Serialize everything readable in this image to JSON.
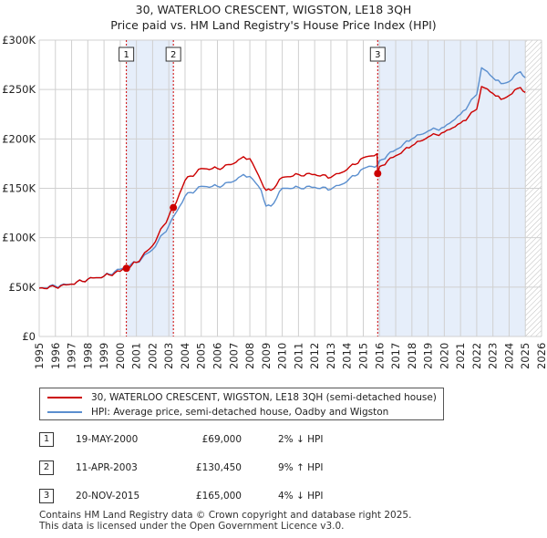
{
  "title": {
    "line1": "30, WATERLOO CRESCENT, WIGSTON, LE18 3QH",
    "line2": "Price paid vs. HM Land Registry's House Price Index (HPI)"
  },
  "colors": {
    "red": "#cc0000",
    "blue": "#5b8fcf",
    "shade": "#e6eefa",
    "grid": "#d0d0d0"
  },
  "legend": {
    "property": "30, WATERLOO CRESCENT, WIGSTON, LE18 3QH (semi-detached house)",
    "hpi": "HPI: Average price, semi-detached house, Oadby and Wigston"
  },
  "sales": [
    {
      "num": "1",
      "date": "19-MAY-2000",
      "price": "£69,000",
      "hpi": "2% ↓ HPI"
    },
    {
      "num": "2",
      "date": "11-APR-2003",
      "price": "£130,450",
      "hpi": "9% ↑ HPI"
    },
    {
      "num": "3",
      "date": "20-NOV-2015",
      "price": "£165,000",
      "hpi": "4% ↓ HPI"
    }
  ],
  "footer": {
    "line1": "Contains HM Land Registry data © Crown copyright and database right 2025.",
    "line2": "This data is licensed under the Open Government Licence v3.0."
  },
  "chart_data": {
    "type": "line",
    "title": "Price paid vs. HM Land Registry's House Price Index (HPI)",
    "x_range": [
      1995,
      2026
    ],
    "y_range": [
      0,
      300000
    ],
    "y_ticks": [
      0,
      50000,
      100000,
      150000,
      200000,
      250000,
      300000
    ],
    "y_tick_labels": [
      "£0",
      "£50K",
      "£100K",
      "£150K",
      "£200K",
      "£250K",
      "£300K"
    ],
    "x_ticks": [
      1995,
      1996,
      1997,
      1998,
      1999,
      2000,
      2001,
      2002,
      2003,
      2004,
      2005,
      2006,
      2007,
      2008,
      2009,
      2010,
      2011,
      2012,
      2013,
      2014,
      2015,
      2016,
      2017,
      2018,
      2019,
      2020,
      2021,
      2022,
      2023,
      2024,
      2025,
      2026
    ],
    "grid": true,
    "shaded_periods": [
      [
        2000.38,
        2003.28
      ],
      [
        2015.89,
        2025.0
      ]
    ],
    "hatched_from": 2025.0,
    "sale_points": [
      {
        "label": "1",
        "x": 2000.38,
        "y": 69000
      },
      {
        "label": "2",
        "x": 2003.28,
        "y": 130450
      },
      {
        "label": "3",
        "x": 2015.89,
        "y": 165000
      }
    ],
    "series": [
      {
        "name": "30, WATERLOO CRESCENT, WIGSTON, LE18 3QH (semi-detached house)",
        "color": "#cc0000",
        "x": [
          1995,
          1996,
          1997,
          1998,
          1999,
          2000,
          2000.38,
          2001,
          2002,
          2003,
          2003.28,
          2004,
          2005,
          2006,
          2007,
          2007.6,
          2008,
          2008.7,
          2009,
          2009.3,
          2010,
          2011,
          2012,
          2013,
          2014,
          2015,
          2015.85,
          2015.89,
          2016,
          2017,
          2018,
          2019,
          2020,
          2021,
          2022,
          2022.3,
          2023,
          2023.5,
          2024,
          2024.7,
          2025
        ],
        "y": [
          49000,
          50000,
          53000,
          58000,
          61000,
          66000,
          69000,
          75000,
          92000,
          122000,
          130450,
          158000,
          170000,
          170000,
          175000,
          182000,
          180000,
          157000,
          148000,
          148000,
          161000,
          164000,
          164000,
          161000,
          169000,
          181000,
          185000,
          165000,
          172000,
          183000,
          193000,
          202000,
          207000,
          216000,
          230000,
          253000,
          246000,
          240000,
          244000,
          252000,
          247000
        ]
      },
      {
        "name": "HPI: Average price, semi-detached house, Oadby and Wigston",
        "color": "#5b8fcf",
        "x": [
          1995,
          1996,
          1997,
          1998,
          1999,
          2000,
          2001,
          2002,
          2003,
          2004,
          2005,
          2006,
          2007,
          2007.6,
          2008,
          2008.7,
          2009,
          2009.3,
          2010,
          2011,
          2012,
          2013,
          2014,
          2015,
          2015.9,
          2016,
          2017,
          2018,
          2019,
          2020,
          2021,
          2022,
          2022.3,
          2023,
          2023.5,
          2024,
          2024.7,
          2025
        ],
        "y": [
          49000,
          51000,
          53000,
          58000,
          61000,
          68000,
          75000,
          88000,
          112000,
          142000,
          152000,
          152000,
          157000,
          164000,
          162000,
          148000,
          132000,
          132000,
          150000,
          151000,
          151000,
          149000,
          157000,
          170000,
          174000,
          178000,
          189000,
          200000,
          208000,
          212000,
          225000,
          245000,
          272000,
          262000,
          256000,
          258000,
          268000,
          262000
        ]
      }
    ]
  }
}
